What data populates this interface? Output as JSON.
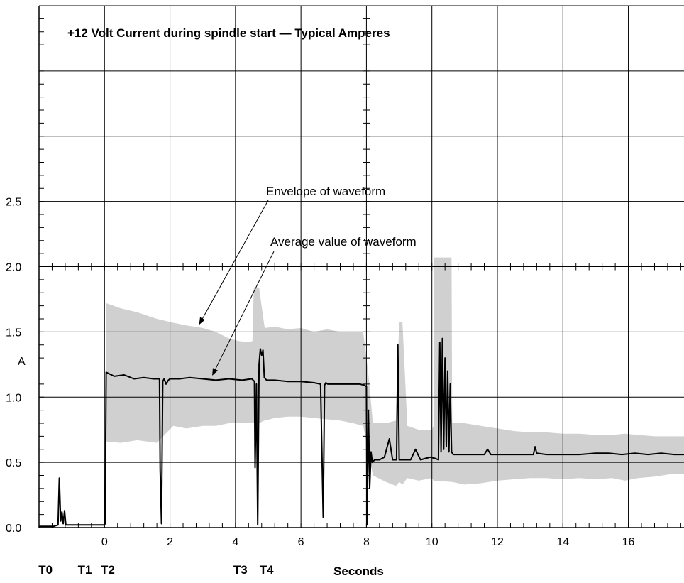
{
  "chart_data": {
    "type": "line",
    "title": "+12 Volt Current during spindle start — Typical Amperes",
    "xlabel": "Seconds",
    "ylabel": "A",
    "xlim": [
      -2,
      17.7
    ],
    "ylim": [
      0,
      4
    ],
    "x_ticks": [
      0,
      2,
      4,
      6,
      8,
      10,
      12,
      14,
      16
    ],
    "x_tick_labels": [
      "0",
      "2",
      "4",
      "6",
      "8",
      "10",
      "12",
      "14",
      "16"
    ],
    "y_ticks": [
      0,
      0.5,
      1.0,
      1.5,
      2.0,
      2.5
    ],
    "y_tick_labels": [
      "0.0",
      "0.5",
      "1.0",
      "1.5",
      "2.0",
      "2.5"
    ],
    "grid": true,
    "timing_markers": [
      {
        "label": "T0",
        "x": -1.8
      },
      {
        "label": "T1",
        "x": -0.6
      },
      {
        "label": "T2",
        "x": 0.1
      },
      {
        "label": "T3",
        "x": 4.15
      },
      {
        "label": "T4",
        "x": 4.95
      }
    ],
    "annotations": [
      {
        "text": "Envelope of waveform",
        "target": [
          2.9,
          1.56
        ]
      },
      {
        "text": "Average value of waveform",
        "target": [
          3.3,
          1.17
        ]
      }
    ],
    "series": [
      {
        "name": "Envelope of waveform",
        "kind": "band",
        "color": "#d0d0d0",
        "x": [
          0.0,
          0.05,
          0.5,
          1.0,
          1.6,
          2.1,
          2.5,
          3.0,
          3.4,
          3.8,
          4.1,
          4.4,
          4.52,
          4.55,
          4.56,
          4.72,
          4.88,
          4.9,
          5.2,
          5.6,
          6.0,
          6.4,
          6.8,
          7.2,
          7.6,
          7.9,
          8.05,
          8.2,
          8.6,
          8.9,
          9.0,
          9.1,
          9.25,
          9.6,
          10.0,
          10.05,
          10.06,
          10.6,
          10.62,
          11.0,
          11.5,
          12.0,
          12.5,
          13.0,
          13.5,
          14.0,
          14.5,
          15.0,
          15.5,
          15.9,
          16.3,
          16.8,
          17.3,
          17.7
        ],
        "upper": [
          0.0,
          1.72,
          1.68,
          1.65,
          1.6,
          1.57,
          1.55,
          1.53,
          1.5,
          1.45,
          1.43,
          1.42,
          1.43,
          1.74,
          1.84,
          1.84,
          1.55,
          1.53,
          1.54,
          1.52,
          1.53,
          1.5,
          1.52,
          1.5,
          1.5,
          1.5,
          1.2,
          0.8,
          0.8,
          0.82,
          1.58,
          1.57,
          0.78,
          0.75,
          0.75,
          0.78,
          2.07,
          2.07,
          0.8,
          0.8,
          0.78,
          0.76,
          0.74,
          0.73,
          0.73,
          0.72,
          0.72,
          0.71,
          0.71,
          0.72,
          0.71,
          0.7,
          0.7,
          0.7
        ],
        "lower": [
          0.0,
          0.66,
          0.65,
          0.67,
          0.65,
          0.78,
          0.76,
          0.78,
          0.78,
          0.8,
          0.8,
          0.8,
          0.8,
          0.8,
          0.8,
          0.8,
          0.82,
          0.82,
          0.84,
          0.85,
          0.85,
          0.84,
          0.83,
          0.82,
          0.8,
          0.78,
          0.6,
          0.4,
          0.35,
          0.32,
          0.35,
          0.33,
          0.38,
          0.36,
          0.38,
          0.36,
          0.36,
          0.35,
          0.35,
          0.33,
          0.34,
          0.36,
          0.37,
          0.38,
          0.38,
          0.37,
          0.38,
          0.37,
          0.38,
          0.36,
          0.38,
          0.39,
          0.41,
          0.41
        ]
      },
      {
        "name": "Average value of waveform",
        "kind": "line",
        "color": "#000000",
        "x": [
          -2.0,
          -1.55,
          -1.42,
          -1.38,
          -1.34,
          -1.3,
          -1.26,
          -1.22,
          -1.18,
          -1.14,
          -1.1,
          -0.6,
          0.0,
          0.02,
          0.05,
          0.3,
          0.6,
          0.9,
          1.2,
          1.5,
          1.68,
          1.7,
          1.74,
          1.78,
          1.82,
          1.88,
          1.95,
          2.0,
          2.3,
          2.6,
          3.0,
          3.4,
          3.8,
          4.2,
          4.5,
          4.58,
          4.6,
          4.64,
          4.68,
          4.72,
          4.76,
          4.8,
          4.84,
          4.88,
          4.95,
          5.2,
          5.6,
          6.0,
          6.4,
          6.6,
          6.68,
          6.72,
          6.76,
          6.82,
          7.0,
          7.4,
          7.8,
          7.95,
          8.0,
          8.02,
          8.06,
          8.1,
          8.14,
          8.18,
          8.25,
          8.4,
          8.55,
          8.7,
          8.8,
          8.92,
          8.96,
          9.0,
          9.05,
          9.1,
          9.2,
          9.35,
          9.5,
          9.65,
          9.8,
          9.95,
          10.1,
          10.2,
          10.24,
          10.28,
          10.32,
          10.36,
          10.4,
          10.44,
          10.48,
          10.52,
          10.56,
          10.6,
          10.65,
          11.0,
          11.6,
          11.7,
          11.8,
          12.5,
          13.1,
          13.15,
          13.2,
          13.5,
          14.0,
          14.5,
          15.0,
          15.4,
          15.8,
          16.2,
          16.6,
          17.0,
          17.4,
          17.7
        ],
        "y": [
          0.01,
          0.01,
          0.02,
          0.38,
          0.05,
          0.12,
          0.03,
          0.13,
          0.02,
          0.02,
          0.02,
          0.02,
          0.02,
          0.03,
          1.19,
          1.16,
          1.17,
          1.14,
          1.15,
          1.14,
          1.14,
          0.45,
          0.03,
          1.12,
          1.14,
          1.1,
          1.13,
          1.14,
          1.14,
          1.15,
          1.14,
          1.13,
          1.14,
          1.13,
          1.14,
          1.12,
          0.46,
          1.1,
          0.02,
          1.25,
          1.37,
          1.32,
          1.36,
          1.15,
          1.13,
          1.13,
          1.12,
          1.12,
          1.11,
          1.1,
          0.08,
          1.09,
          1.11,
          1.1,
          1.1,
          1.1,
          1.1,
          1.09,
          1.08,
          0.02,
          0.9,
          0.3,
          0.58,
          0.5,
          0.52,
          0.52,
          0.54,
          0.68,
          0.52,
          0.52,
          1.4,
          0.52,
          0.52,
          0.52,
          0.52,
          0.52,
          0.6,
          0.52,
          0.53,
          0.54,
          0.53,
          0.52,
          1.42,
          0.58,
          1.45,
          0.6,
          1.3,
          0.62,
          1.2,
          0.58,
          1.1,
          0.58,
          0.56,
          0.56,
          0.56,
          0.6,
          0.56,
          0.56,
          0.56,
          0.62,
          0.57,
          0.56,
          0.56,
          0.56,
          0.57,
          0.57,
          0.56,
          0.57,
          0.56,
          0.57,
          0.56,
          0.56
        ]
      }
    ]
  }
}
